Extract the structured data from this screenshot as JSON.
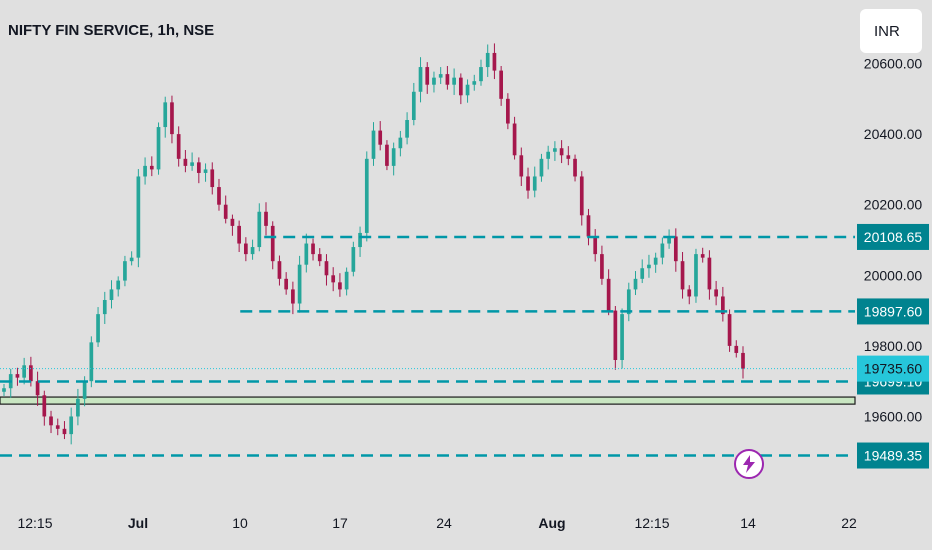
{
  "header": {
    "title": "NIFTY FIN SERVICE, 1h, NSE",
    "currency": "INR"
  },
  "colors": {
    "up": "#26a69a",
    "down": "#a5174c",
    "level_line": "#0097a7",
    "label_bg": "#00838f",
    "last_price_bg": "#26c6da",
    "zone_fill": "#c9e6c2",
    "zone_border": "#1b1b1b",
    "alert": "#9c27b0"
  },
  "icons": {
    "alert": "lightning-bolt-icon"
  },
  "chart_data": {
    "type": "candlestick",
    "y_axis": {
      "min": 19420,
      "max": 20610,
      "ticks": [
        "19600.00",
        "19800.00",
        "20000.00",
        "20200.00",
        "20400.00",
        "20600.00"
      ],
      "tick_values": [
        19600,
        19800,
        20000,
        20200,
        20400,
        20600
      ]
    },
    "x_axis": {
      "ticks": [
        "12:15",
        "Jul",
        "10",
        "17",
        "24",
        "Aug",
        "12:15",
        "14",
        "22"
      ],
      "tick_bold": [
        false,
        true,
        false,
        false,
        false,
        true,
        false,
        false,
        false
      ]
    },
    "closes": [
      19680,
      19720,
      19710,
      19745,
      19700,
      19660,
      19600,
      19575,
      19565,
      19550,
      19600,
      19650,
      19700,
      19810,
      19890,
      19930,
      19960,
      19985,
      20040,
      20050,
      20280,
      20310,
      20300,
      20420,
      20490,
      20400,
      20330,
      20310,
      20320,
      20290,
      20300,
      20250,
      20200,
      20160,
      20140,
      20090,
      20060,
      20080,
      20180,
      20140,
      20040,
      19990,
      19960,
      19920,
      20030,
      20090,
      20060,
      20040,
      20000,
      19980,
      19960,
      20010,
      20080,
      20120,
      20330,
      20410,
      20370,
      20310,
      20360,
      20390,
      20440,
      20520,
      20590,
      20540,
      20560,
      20570,
      20540,
      20560,
      20510,
      20540,
      20550,
      20590,
      20630,
      20580,
      20500,
      20430,
      20340,
      20280,
      20240,
      20280,
      20330,
      20350,
      20360,
      20340,
      20330,
      20280,
      20170,
      20110,
      20060,
      19990,
      19900,
      19760,
      19890,
      19960,
      19990,
      20020,
      20030,
      20050,
      20090,
      20110,
      20040,
      19960,
      19940,
      20060,
      20050,
      19960,
      19940,
      19890,
      19800,
      19780,
      19735.6
    ],
    "levels": [
      {
        "label": "20108.65",
        "value": 20108.65,
        "from": 0.309
      },
      {
        "label": "19897.60",
        "value": 19897.6,
        "from": 0.281
      },
      {
        "label": "19699.10",
        "value": 19699.1,
        "from": 0.0
      },
      {
        "label": "19489.35",
        "value": 19489.35,
        "from": 0.0
      }
    ],
    "last_price": {
      "label": "19735.60",
      "value": 19735.6
    },
    "zone": {
      "low": 19635,
      "high": 19655
    }
  }
}
